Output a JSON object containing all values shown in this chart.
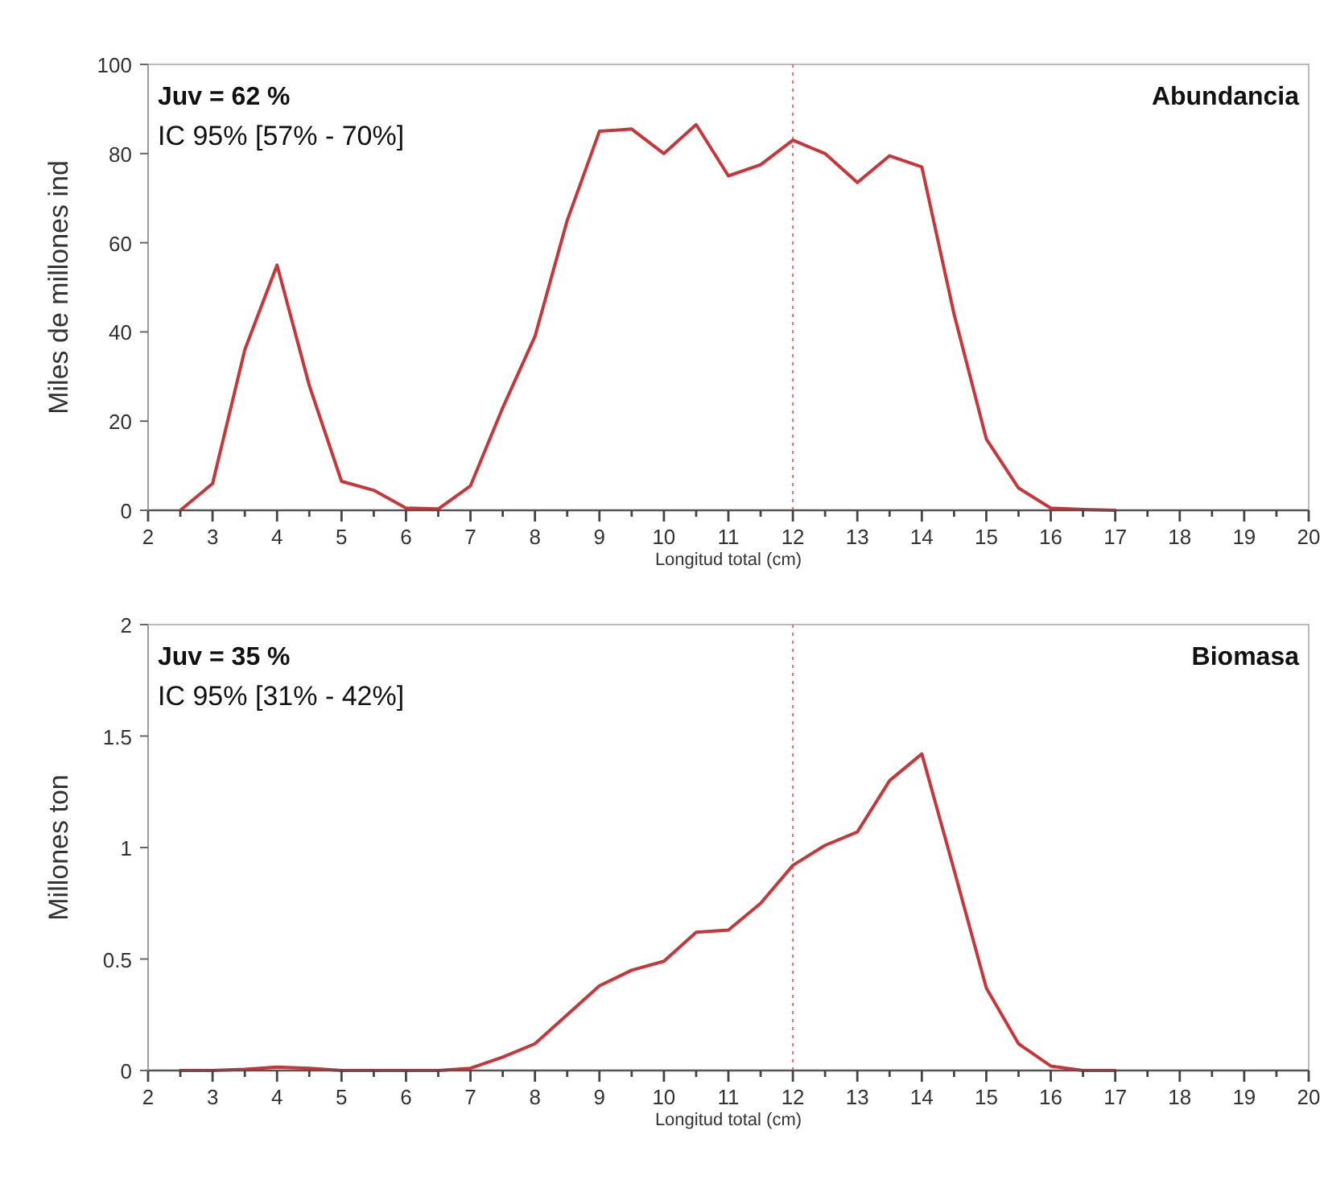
{
  "chart_data": [
    {
      "type": "line",
      "title": "Abundancia",
      "xlabel": "Longitud total (cm)",
      "ylabel": "Miles de millones ind",
      "annotations": [
        "Juv = 62 %",
        "IC 95% [57% - 70%]"
      ],
      "x": [
        2.5,
        3,
        3.5,
        4,
        4.5,
        5,
        5.5,
        6,
        6.5,
        7,
        7.5,
        8,
        8.5,
        9,
        9.5,
        10,
        10.5,
        11,
        11.5,
        12,
        12.5,
        13,
        13.5,
        14,
        14.5,
        15,
        15.5,
        16,
        16.5,
        17
      ],
      "series": [
        {
          "color": "#c8363a",
          "values": [
            0,
            6,
            36,
            55,
            28,
            6.5,
            4.5,
            0.5,
            0.3,
            5.5,
            23,
            39,
            65,
            85,
            85.5,
            80,
            86.5,
            75,
            77.5,
            83,
            80,
            73.5,
            79.5,
            77,
            44,
            16,
            5,
            0.5,
            0.2,
            0
          ]
        }
      ],
      "xlim": [
        2,
        20
      ],
      "xticks": [
        2,
        {
          "value": 2.5,
          "label": null
        },
        3,
        {
          "value": 3.5,
          "label": null
        },
        4,
        {
          "value": 4.5,
          "label": null
        },
        5,
        {
          "value": 5.5,
          "label": null
        },
        6,
        {
          "value": 6.5,
          "label": null
        },
        7,
        {
          "value": 7.5,
          "label": null
        },
        8,
        {
          "value": 8.5,
          "label": null
        },
        9,
        {
          "value": 9.5,
          "label": null
        },
        10,
        {
          "value": 10.5,
          "label": null
        },
        11,
        {
          "value": 11.5,
          "label": null
        },
        12,
        {
          "value": 12.5,
          "label": null
        },
        13,
        {
          "value": 13.5,
          "label": null
        },
        14,
        {
          "value": 14.5,
          "label": null
        },
        15,
        {
          "value": 15.5,
          "label": null
        },
        16,
        {
          "value": 16.5,
          "label": null
        },
        17,
        {
          "value": 17.5,
          "label": null
        },
        18,
        {
          "value": 18.5,
          "label": null
        },
        19,
        {
          "value": 19.5,
          "label": null
        },
        20
      ],
      "ylim": [
        0,
        100
      ],
      "yticks": [
        0,
        20,
        40,
        60,
        80,
        100
      ],
      "ref_lines": [
        {
          "axis": "x",
          "value": 12,
          "color": "#e07070",
          "line_style": "dotted"
        }
      ],
      "grid": false,
      "marker": "none",
      "line_style": "solid"
    },
    {
      "type": "line",
      "title": "Biomasa",
      "xlabel": "Longitud total (cm)",
      "ylabel": "Millones ton",
      "annotations": [
        "Juv = 35 %",
        "IC 95% [31% - 42%]"
      ],
      "x": [
        2.5,
        3,
        3.5,
        4,
        4.5,
        5,
        5.5,
        6,
        6.5,
        7,
        7.5,
        8,
        8.5,
        9,
        9.5,
        10,
        10.5,
        11,
        11.5,
        12,
        12.5,
        13,
        13.5,
        14,
        14.5,
        15,
        15.5,
        16,
        16.5,
        17
      ],
      "series": [
        {
          "color": "#c8363a",
          "values": [
            0,
            0,
            0.005,
            0.015,
            0.01,
            0,
            0,
            0,
            0,
            0.01,
            0.06,
            0.12,
            0.25,
            0.38,
            0.45,
            0.49,
            0.62,
            0.63,
            0.75,
            0.92,
            1.01,
            1.07,
            1.3,
            1.42,
            0.9,
            0.37,
            0.12,
            0.02,
            0,
            0
          ]
        }
      ],
      "xlim": [
        2,
        20
      ],
      "xticks": [
        2,
        {
          "value": 2.5,
          "label": null
        },
        3,
        {
          "value": 3.5,
          "label": null
        },
        4,
        {
          "value": 4.5,
          "label": null
        },
        5,
        {
          "value": 5.5,
          "label": null
        },
        6,
        {
          "value": 6.5,
          "label": null
        },
        7,
        {
          "value": 7.5,
          "label": null
        },
        8,
        {
          "value": 8.5,
          "label": null
        },
        9,
        {
          "value": 9.5,
          "label": null
        },
        10,
        {
          "value": 10.5,
          "label": null
        },
        11,
        {
          "value": 11.5,
          "label": null
        },
        12,
        {
          "value": 12.5,
          "label": null
        },
        13,
        {
          "value": 13.5,
          "label": null
        },
        14,
        {
          "value": 14.5,
          "label": null
        },
        15,
        {
          "value": 15.5,
          "label": null
        },
        16,
        {
          "value": 16.5,
          "label": null
        },
        17,
        {
          "value": 17.5,
          "label": null
        },
        18,
        {
          "value": 18.5,
          "label": null
        },
        19,
        {
          "value": 19.5,
          "label": null
        },
        20
      ],
      "ylim": [
        0,
        2
      ],
      "yticks": [
        0,
        0.5,
        1,
        1.5,
        2
      ],
      "ref_lines": [
        {
          "axis": "x",
          "value": 12,
          "color": "#e07070",
          "line_style": "dotted"
        }
      ],
      "grid": false,
      "marker": "none",
      "line_style": "solid"
    }
  ]
}
